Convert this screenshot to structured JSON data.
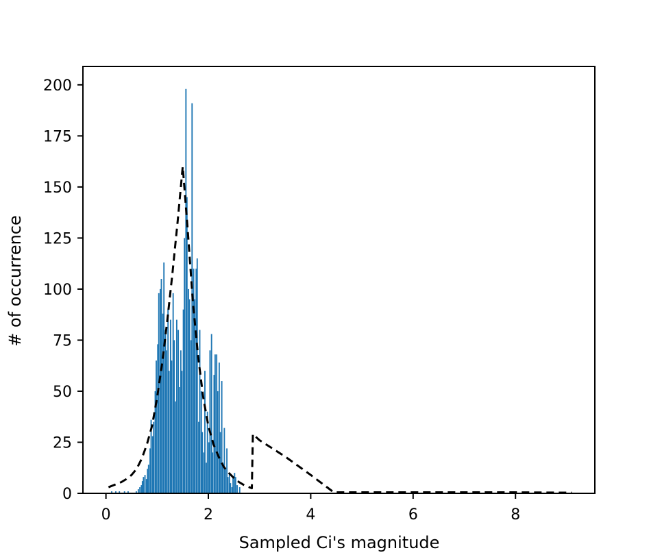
{
  "chart_data": {
    "type": "bar",
    "title": "",
    "xlabel": "Sampled Ci's magnitude",
    "ylabel": "# of occurrence",
    "xlim": [
      -0.45,
      9.55
    ],
    "ylim": [
      0,
      209
    ],
    "xticks": [
      0,
      2,
      4,
      6,
      8
    ],
    "yticks": [
      0,
      25,
      50,
      75,
      100,
      125,
      150,
      175,
      200
    ],
    "grid": false,
    "legend": "none",
    "bar_color": "#1f77b4",
    "line_color": "#000000",
    "histogram": {
      "bin_width": 0.025,
      "bins": [
        [
          0.1,
          1
        ],
        [
          0.18,
          1
        ],
        [
          0.25,
          1
        ],
        [
          0.35,
          1
        ],
        [
          0.42,
          1
        ],
        [
          0.58,
          1
        ],
        [
          0.62,
          2
        ],
        [
          0.65,
          3
        ],
        [
          0.68,
          4
        ],
        [
          0.7,
          6
        ],
        [
          0.72,
          8
        ],
        [
          0.75,
          9
        ],
        [
          0.78,
          7
        ],
        [
          0.8,
          12
        ],
        [
          0.82,
          14
        ],
        [
          0.85,
          22
        ],
        [
          0.87,
          36
        ],
        [
          0.9,
          28
        ],
        [
          0.92,
          35
        ],
        [
          0.95,
          50
        ],
        [
          0.97,
          65
        ],
        [
          1.0,
          73
        ],
        [
          1.02,
          98
        ],
        [
          1.05,
          100
        ],
        [
          1.07,
          105
        ],
        [
          1.1,
          88
        ],
        [
          1.12,
          113
        ],
        [
          1.15,
          80
        ],
        [
          1.17,
          70
        ],
        [
          1.2,
          90
        ],
        [
          1.22,
          60
        ],
        [
          1.25,
          85
        ],
        [
          1.27,
          65
        ],
        [
          1.3,
          98
        ],
        [
          1.32,
          75
        ],
        [
          1.35,
          45
        ],
        [
          1.37,
          85
        ],
        [
          1.4,
          80
        ],
        [
          1.42,
          52
        ],
        [
          1.45,
          70
        ],
        [
          1.47,
          60
        ],
        [
          1.5,
          90
        ],
        [
          1.52,
          125
        ],
        [
          1.55,
          198
        ],
        [
          1.57,
          145
        ],
        [
          1.6,
          100
        ],
        [
          1.62,
          95
        ],
        [
          1.65,
          75
        ],
        [
          1.67,
          191
        ],
        [
          1.7,
          110
        ],
        [
          1.72,
          95
        ],
        [
          1.75,
          110
        ],
        [
          1.77,
          115
        ],
        [
          1.8,
          35
        ],
        [
          1.82,
          80
        ],
        [
          1.85,
          50
        ],
        [
          1.87,
          30
        ],
        [
          1.9,
          20
        ],
        [
          1.92,
          60
        ],
        [
          1.95,
          15
        ],
        [
          1.97,
          40
        ],
        [
          2.0,
          25
        ],
        [
          2.02,
          70
        ],
        [
          2.05,
          78
        ],
        [
          2.07,
          20
        ],
        [
          2.1,
          58
        ],
        [
          2.12,
          68
        ],
        [
          2.15,
          68
        ],
        [
          2.17,
          50
        ],
        [
          2.2,
          64
        ],
        [
          2.22,
          30
        ],
        [
          2.25,
          55
        ],
        [
          2.27,
          15
        ],
        [
          2.3,
          32
        ],
        [
          2.32,
          12
        ],
        [
          2.35,
          22
        ],
        [
          2.37,
          8
        ],
        [
          2.4,
          10
        ],
        [
          2.42,
          5
        ],
        [
          2.45,
          3
        ],
        [
          2.47,
          8
        ],
        [
          2.5,
          10
        ],
        [
          2.52,
          8
        ],
        [
          2.55,
          4
        ],
        [
          2.6,
          3
        ]
      ]
    },
    "series": [
      {
        "type": "line",
        "style": "dashed",
        "x": [
          0.05,
          0.2,
          0.3,
          0.4,
          0.5,
          0.6,
          0.7,
          0.8,
          0.9,
          1.0,
          1.1,
          1.2,
          1.3,
          1.4,
          1.5,
          1.6,
          1.7,
          1.8,
          1.9,
          2.0,
          2.1,
          2.2,
          2.3,
          2.4,
          2.5,
          2.6,
          2.7,
          2.8,
          2.85,
          2.87,
          3.0,
          3.5,
          4.0,
          4.45,
          5.0,
          6.0,
          7.0,
          8.0,
          9.1
        ],
        "y": [
          3,
          4.5,
          5.5,
          7,
          9,
          12,
          17,
          24,
          33,
          47,
          64,
          85,
          108,
          133,
          160,
          128,
          93,
          67,
          47,
          33,
          24,
          18,
          13,
          10,
          7.5,
          5.5,
          4,
          3,
          2.5,
          29,
          26,
          18,
          9,
          0.5,
          0.5,
          0.5,
          0.5,
          0.5,
          0.3
        ]
      }
    ]
  }
}
